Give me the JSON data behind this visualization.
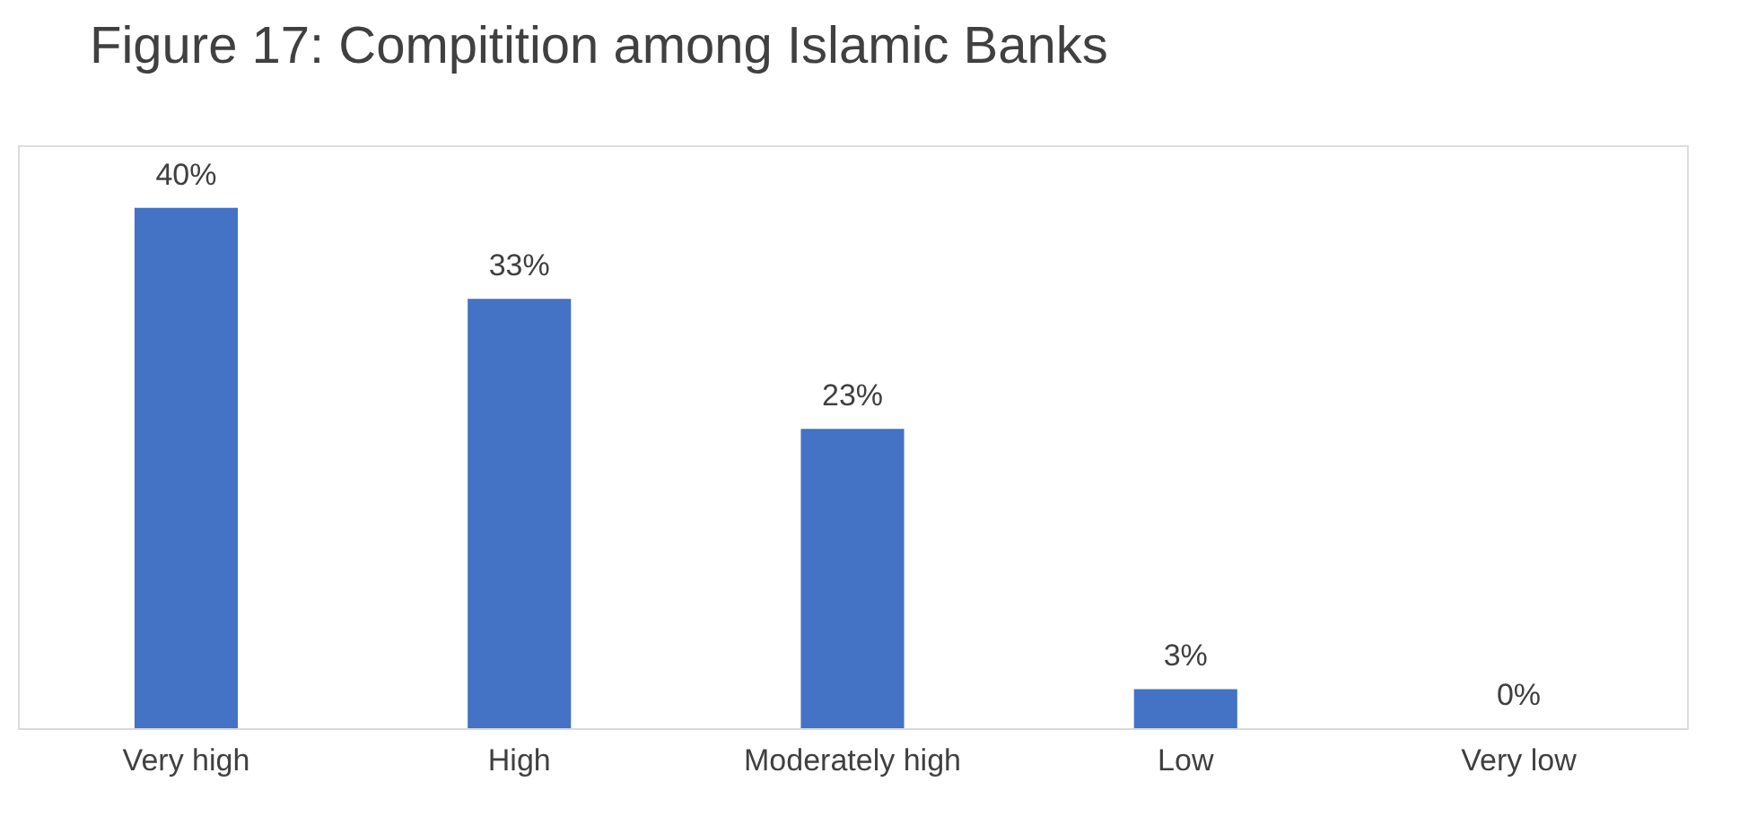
{
  "chart_data": {
    "type": "bar",
    "title": "Figure 17: Compitition among Islamic Banks",
    "categories": [
      "Very high",
      "High",
      "Moderately high",
      "Low",
      "Very low"
    ],
    "values": [
      40,
      33,
      23,
      3,
      0
    ],
    "value_labels": [
      "40%",
      "33%",
      "23%",
      "3%",
      "0%"
    ],
    "color": "#4472c4",
    "grid": false
  }
}
